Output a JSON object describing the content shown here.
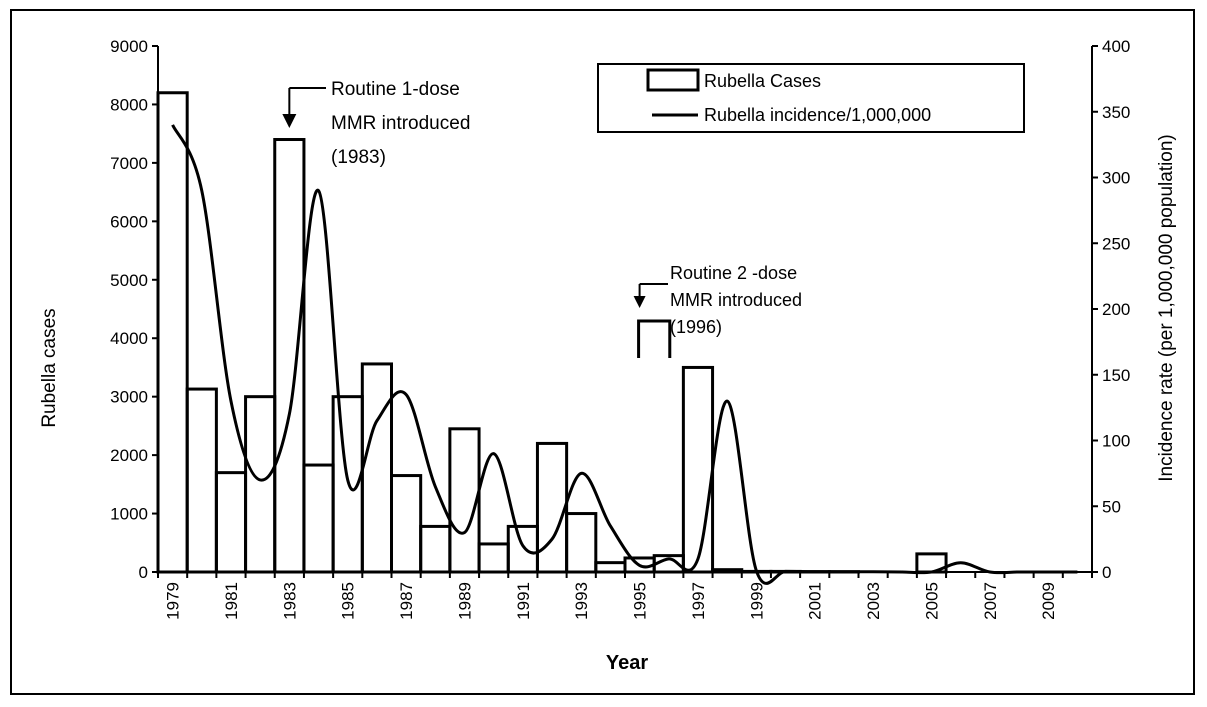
{
  "chart_data": {
    "type": "bar",
    "xlabel": "Year",
    "ylabel": "Rubella cases",
    "y2label": "Incidence rate (per 1,000,000 population)",
    "ylim": [
      0,
      9000
    ],
    "y2lim": [
      0,
      400
    ],
    "yticks": [
      0,
      1000,
      2000,
      3000,
      4000,
      5000,
      6000,
      7000,
      8000,
      9000
    ],
    "y2ticks": [
      0,
      50,
      100,
      150,
      200,
      250,
      300,
      350,
      400
    ],
    "xticks": [
      "1979",
      "1981",
      "1983",
      "1985",
      "1987",
      "1989",
      "1991",
      "1993",
      "1995",
      "1997",
      "1999",
      "2001",
      "2003",
      "2005",
      "2007",
      "2009"
    ],
    "grid": false,
    "legend_position": "top-right",
    "years": [
      1979,
      1980,
      1981,
      1982,
      1983,
      1984,
      1985,
      1986,
      1987,
      1988,
      1989,
      1990,
      1991,
      1992,
      1993,
      1994,
      1995,
      1996,
      1997,
      1998,
      1999,
      2000,
      2001,
      2002,
      2003,
      2004,
      2005,
      2006,
      2007,
      2008,
      2009,
      2010
    ],
    "series": [
      {
        "name": "Rubella Cases",
        "kind": "bar",
        "axis": "left",
        "values": [
          8200,
          3130,
          1700,
          3000,
          7400,
          1830,
          3000,
          3560,
          1650,
          780,
          2450,
          480,
          780,
          2200,
          1000,
          160,
          240,
          280,
          3500,
          40,
          10,
          10,
          5,
          5,
          0,
          0,
          310,
          0,
          0,
          0,
          0,
          0
        ]
      },
      {
        "name": "Rubella incidence/1,000,000",
        "kind": "line",
        "axis": "right",
        "values": [
          340,
          290,
          130,
          70,
          120,
          290,
          70,
          115,
          135,
          65,
          30,
          90,
          20,
          25,
          75,
          35,
          5,
          10,
          10,
          130,
          1,
          0.5,
          0.3,
          0.2,
          0.2,
          0,
          0,
          7,
          0,
          0,
          0,
          0
        ]
      }
    ],
    "annotations": [
      {
        "lines": [
          "Routine 1-dose",
          "MMR introduced",
          "(1983)"
        ],
        "year": 1983
      },
      {
        "lines": [
          "Routine 2 -dose",
          "MMR introduced",
          "(1996)"
        ],
        "year": 1996
      }
    ]
  }
}
